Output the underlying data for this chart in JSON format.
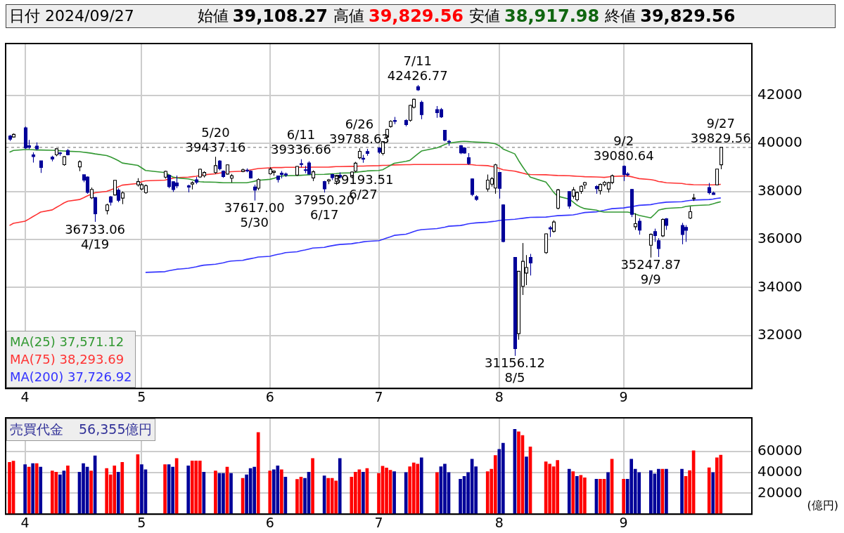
{
  "chart_data": [
    {
      "type": "candlestick",
      "annotations": [
        "日付 2024/09/27",
        "始値",
        "39,108.27",
        "高値",
        "39,829.56",
        "安値",
        "38,917.98",
        "終値",
        "39,829.56",
        {
          "text": "7/11",
          "x": "2024-07-11",
          "y": 42426.77
        },
        {
          "text": "42426.77",
          "x": "2024-07-11",
          "y": 42426.77
        },
        {
          "text": "5/20",
          "x": "2024-05-20",
          "y": 39437.16
        },
        {
          "text": "39437.16",
          "x": "2024-05-20",
          "y": 39437.16
        },
        {
          "text": "6/11",
          "x": "2024-06-11",
          "y": 39336.66
        },
        {
          "text": "39336.66",
          "x": "2024-06-11",
          "y": 39336.66
        },
        {
          "text": "6/26",
          "x": "2024-06-26",
          "y": 39788.63
        },
        {
          "text": "39788.63",
          "x": "2024-06-26",
          "y": 39788.63
        },
        {
          "text": "39193.51",
          "x": "2024-06-27",
          "y": 39193.51
        },
        {
          "text": "6/27",
          "x": "2024-06-27",
          "y": 39193.51
        },
        {
          "text": "36733.06",
          "x": "2024-04-19",
          "y": 36733.06
        },
        {
          "text": "4/19",
          "x": "2024-04-19",
          "y": 36733.06
        },
        {
          "text": "37617.00",
          "x": "2024-05-30",
          "y": 37617
        },
        {
          "text": "5/30",
          "x": "2024-05-30",
          "y": 37617
        },
        {
          "text": "37950.20",
          "x": "2024-06-17",
          "y": 37950.2
        },
        {
          "text": "6/17",
          "x": "2024-06-17",
          "y": 37950.2
        },
        {
          "text": "31156.12",
          "x": "2024-08-05",
          "y": 31156.12
        },
        {
          "text": "8/5",
          "x": "2024-08-05",
          "y": 31156.12
        },
        {
          "text": "9/2",
          "x": "2024-09-02",
          "y": 39080.64
        },
        {
          "text": "39080.64",
          "x": "2024-09-02",
          "y": 39080.64
        },
        {
          "text": "35247.87",
          "x": "2024-09-09",
          "y": 35247.87
        },
        {
          "text": "9/9",
          "x": "2024-09-09",
          "y": 35247.87
        },
        {
          "text": "9/27",
          "x": "2024-09-27",
          "y": 39829.56
        },
        {
          "text": "39829.56",
          "x": "2024-09-27",
          "y": 39829.56
        }
      ],
      "x": [
        "2024-03-28",
        "2024-03-29",
        "2024-04-01",
        "2024-04-02",
        "2024-04-03",
        "2024-04-04",
        "2024-04-05",
        "2024-04-08",
        "2024-04-09",
        "2024-04-10",
        "2024-04-11",
        "2024-04-12",
        "2024-04-15",
        "2024-04-16",
        "2024-04-17",
        "2024-04-18",
        "2024-04-19",
        "2024-04-22",
        "2024-04-23",
        "2024-04-24",
        "2024-04-25",
        "2024-04-26",
        "2024-04-30",
        "2024-05-01",
        "2024-05-02",
        "2024-05-07",
        "2024-05-08",
        "2024-05-09",
        "2024-05-10",
        "2024-05-13",
        "2024-05-14",
        "2024-05-15",
        "2024-05-16",
        "2024-05-17",
        "2024-05-20",
        "2024-05-21",
        "2024-05-22",
        "2024-05-23",
        "2024-05-24",
        "2024-05-27",
        "2024-05-28",
        "2024-05-29",
        "2024-05-30",
        "2024-05-31",
        "2024-06-03",
        "2024-06-04",
        "2024-06-05",
        "2024-06-06",
        "2024-06-07",
        "2024-06-10",
        "2024-06-11",
        "2024-06-12",
        "2024-06-13",
        "2024-06-14",
        "2024-06-17",
        "2024-06-18",
        "2024-06-19",
        "2024-06-20",
        "2024-06-21",
        "2024-06-24",
        "2024-06-25",
        "2024-06-26",
        "2024-06-27",
        "2024-06-28",
        "2024-07-01",
        "2024-07-02",
        "2024-07-03",
        "2024-07-04",
        "2024-07-05",
        "2024-07-08",
        "2024-07-09",
        "2024-07-10",
        "2024-07-11",
        "2024-07-12",
        "2024-07-16",
        "2024-07-17",
        "2024-07-18",
        "2024-07-19",
        "2024-07-22",
        "2024-07-23",
        "2024-07-24",
        "2024-07-25",
        "2024-07-26",
        "2024-07-29",
        "2024-07-30",
        "2024-07-31",
        "2024-08-01",
        "2024-08-02",
        "2024-08-05",
        "2024-08-06",
        "2024-08-07",
        "2024-08-08",
        "2024-08-09",
        "2024-08-13",
        "2024-08-14",
        "2024-08-15",
        "2024-08-16",
        "2024-08-19",
        "2024-08-20",
        "2024-08-21",
        "2024-08-22",
        "2024-08-23",
        "2024-08-26",
        "2024-08-27",
        "2024-08-28",
        "2024-08-29",
        "2024-08-30",
        "2024-09-02",
        "2024-09-03",
        "2024-09-04",
        "2024-09-05",
        "2024-09-06",
        "2024-09-09",
        "2024-09-10",
        "2024-09-11",
        "2024-09-12",
        "2024-09-13",
        "2024-09-17",
        "2024-09-18",
        "2024-09-19",
        "2024-09-20",
        "2024-09-24",
        "2024-09-25",
        "2024-09-26",
        "2024-09-27"
      ],
      "xlim": [
        "2024-03-27",
        "2024-10-05"
      ],
      "xticks": [
        {
          "value": "2024-04-01",
          "label": "4"
        },
        {
          "value": "2024-05-01",
          "label": "5"
        },
        {
          "value": "2024-06-03",
          "label": "6"
        },
        {
          "value": "2024-07-01",
          "label": "7"
        },
        {
          "value": "2024-08-01",
          "label": "8"
        },
        {
          "value": "2024-09-02",
          "label": "9"
        }
      ],
      "ohlc": [
        [
          40300,
          40350,
          40100,
          40168
        ],
        [
          40260,
          40410,
          40240,
          40369
        ],
        [
          40646,
          40697,
          39768,
          39803
        ],
        [
          39900,
          40140,
          39760,
          39838
        ],
        [
          39520,
          39620,
          39200,
          39451
        ],
        [
          39880,
          40040,
          39720,
          39773
        ],
        [
          39270,
          39270,
          38770,
          38992
        ],
        [
          39420,
          39480,
          39250,
          39347
        ],
        [
          39520,
          39780,
          39460,
          39773
        ],
        [
          39600,
          39640,
          39480,
          39581
        ],
        [
          39110,
          39460,
          39070,
          39442
        ],
        [
          39700,
          39760,
          39500,
          39523
        ],
        [
          39020,
          39290,
          38840,
          39232
        ],
        [
          38690,
          38690,
          38380,
          38471
        ],
        [
          38600,
          38620,
          37900,
          37961
        ],
        [
          37730,
          38160,
          37680,
          38079
        ],
        [
          37740,
          37760,
          36733.06,
          37068
        ],
        [
          37200,
          37490,
          37040,
          37438
        ],
        [
          37770,
          37810,
          37410,
          37552
        ],
        [
          37850,
          38460,
          37830,
          38460
        ],
        [
          38050,
          38130,
          37550,
          37628
        ],
        [
          37720,
          38000,
          37470,
          37934
        ],
        [
          38270,
          38550,
          38200,
          38405
        ],
        [
          38100,
          38350,
          38050,
          38274
        ],
        [
          37950,
          38290,
          37900,
          38236
        ],
        [
          38590,
          38860,
          38530,
          38835
        ],
        [
          38670,
          38700,
          38130,
          38202
        ],
        [
          38400,
          38420,
          37980,
          38074
        ],
        [
          38350,
          38660,
          38130,
          38229
        ],
        [
          38230,
          38280,
          37960,
          38179
        ],
        [
          38300,
          38420,
          38080,
          38356
        ],
        [
          38480,
          38600,
          38300,
          38385
        ],
        [
          38600,
          38950,
          38560,
          38920
        ],
        [
          38650,
          38830,
          38580,
          38787
        ],
        [
          38780,
          39437.16,
          38730,
          39069
        ],
        [
          39260,
          39300,
          38880,
          38947
        ],
        [
          38840,
          38870,
          38560,
          38617
        ],
        [
          38720,
          39120,
          38700,
          39103
        ],
        [
          38550,
          38720,
          38370,
          38646
        ],
        [
          38830,
          38950,
          38800,
          38900
        ],
        [
          38880,
          38960,
          38800,
          38855
        ],
        [
          38840,
          38880,
          38530,
          38557
        ],
        [
          38180,
          38280,
          37617,
          38054
        ],
        [
          38130,
          38540,
          38050,
          38488
        ],
        [
          38730,
          39000,
          38700,
          38923
        ],
        [
          38790,
          38880,
          38650,
          38837
        ],
        [
          38640,
          38650,
          38370,
          38490
        ],
        [
          38760,
          38850,
          38540,
          38703
        ],
        [
          38720,
          38780,
          38600,
          38683
        ],
        [
          38680,
          39050,
          38640,
          39038
        ],
        [
          39150,
          39336.66,
          39000,
          39134
        ],
        [
          38900,
          39060,
          38760,
          38876
        ],
        [
          39180,
          39260,
          38700,
          38720
        ],
        [
          38560,
          38880,
          38430,
          38814
        ],
        [
          38410,
          38440,
          37950.2,
          38102
        ],
        [
          38430,
          38520,
          38300,
          38482
        ],
        [
          38700,
          38730,
          38470,
          38570
        ],
        [
          38420,
          38640,
          38270,
          38633
        ],
        [
          38670,
          38790,
          38530,
          38596
        ],
        [
          38600,
          38840,
          38540,
          38804
        ],
        [
          38840,
          39230,
          38800,
          39173
        ],
        [
          39400,
          39788.63,
          39340,
          39667
        ],
        [
          39380,
          39520,
          39193.51,
          39341
        ],
        [
          39660,
          39770,
          39480,
          39583
        ],
        [
          39800,
          39830,
          39560,
          39631
        ],
        [
          39580,
          40080,
          39500,
          40074
        ],
        [
          40260,
          40600,
          40200,
          40580
        ],
        [
          40700,
          40960,
          40650,
          40913
        ],
        [
          40950,
          41100,
          40800,
          40912
        ],
        [
          40950,
          41000,
          40700,
          40780
        ],
        [
          40960,
          41600,
          40900,
          41580
        ],
        [
          41500,
          41860,
          41450,
          41832
        ],
        [
          42350,
          42426.77,
          42180,
          42224
        ],
        [
          41700,
          41780,
          41000,
          41191
        ],
        [
          41400,
          41550,
          41060,
          41275
        ],
        [
          41400,
          41470,
          41050,
          41098
        ],
        [
          40540,
          40560,
          40080,
          40126
        ],
        [
          40080,
          40140,
          39900,
          40064
        ],
        [
          39900,
          39930,
          39550,
          39599
        ],
        [
          39800,
          39830,
          39570,
          39594
        ],
        [
          39400,
          39590,
          39100,
          39155
        ],
        [
          38520,
          38540,
          37800,
          37870
        ],
        [
          37780,
          37840,
          37610,
          37667
        ],
        [
          38100,
          38700,
          37990,
          38468
        ],
        [
          38300,
          38600,
          38200,
          38526
        ],
        [
          38140,
          39150,
          37900,
          39102
        ],
        [
          38790,
          38800,
          37700,
          38126
        ],
        [
          37440,
          37460,
          35880,
          35910
        ],
        [
          35250,
          35250,
          31156.12,
          31458
        ],
        [
          32080,
          34680,
          31830,
          34675
        ],
        [
          34050,
          35850,
          33690,
          35090
        ],
        [
          34600,
          35350,
          34100,
          34831
        ],
        [
          35250,
          35400,
          34500,
          35025
        ],
        [
          35450,
          36250,
          35400,
          36232
        ],
        [
          36490,
          36560,
          36100,
          36442
        ],
        [
          36340,
          36800,
          36280,
          36727
        ],
        [
          37300,
          38100,
          37250,
          38063
        ],
        [
          37990,
          38000,
          37280,
          37389
        ],
        [
          37800,
          38180,
          37700,
          38063
        ],
        [
          37650,
          38000,
          37580,
          37952
        ],
        [
          38000,
          38250,
          37900,
          38211
        ],
        [
          38270,
          38400,
          38100,
          38364
        ],
        [
          38200,
          38260,
          37900,
          38110
        ],
        [
          38030,
          38330,
          37870,
          38289
        ],
        [
          38280,
          38430,
          38200,
          38372
        ],
        [
          38100,
          38400,
          37950,
          38363
        ],
        [
          38370,
          38700,
          38300,
          38648
        ],
        [
          39040,
          39080.64,
          38430,
          38701
        ],
        [
          38720,
          38800,
          38620,
          38686
        ],
        [
          38080,
          38100,
          36930,
          37048
        ],
        [
          36530,
          37090,
          36400,
          36657
        ],
        [
          36760,
          36880,
          36200,
          36391
        ],
        [
          35760,
          36250,
          35247.87,
          36216
        ],
        [
          36330,
          36450,
          35900,
          36159
        ],
        [
          35950,
          36050,
          35270,
          35620
        ],
        [
          36150,
          36880,
          36100,
          36833
        ],
        [
          36860,
          36890,
          36400,
          36582
        ],
        [
          36580,
          36690,
          35800,
          36203
        ],
        [
          36500,
          36600,
          35900,
          36380
        ],
        [
          36890,
          37370,
          36850,
          37155
        ],
        [
          37700,
          37900,
          37600,
          37724
        ],
        [
          38160,
          38350,
          37870,
          37941
        ],
        [
          37930,
          37990,
          37860,
          37870
        ],
        [
          38270,
          38930,
          38250,
          38926
        ],
        [
          39108.27,
          39829.56,
          38917.98,
          39829.56
        ]
      ],
      "series": [
        {
          "name": "MA(25) 37,571.12",
          "type": "line",
          "color": "#339933",
          "values": [
            39630,
            39700,
            39740,
            39740,
            39730,
            39720,
            39720,
            39710,
            39700,
            39690,
            39680,
            39670,
            39650,
            39630,
            39610,
            39590,
            39560,
            39490,
            39430,
            39360,
            39280,
            39180,
            39080,
            38980,
            38870,
            38780,
            38690,
            38600,
            38560,
            38520,
            38480,
            38430,
            38400,
            38390,
            38380,
            38370,
            38360,
            38360,
            38360,
            38360,
            38360,
            38390,
            38420,
            38460,
            38500,
            38540,
            38590,
            38640,
            38650,
            38660,
            38670,
            38680,
            38690,
            38700,
            38710,
            38720,
            38730,
            38740,
            38760,
            38770,
            38790,
            38810,
            38830,
            38850,
            38870,
            38900,
            38990,
            39080,
            39170,
            39250,
            39290,
            39420,
            39550,
            39680,
            39810,
            39880,
            39950,
            40010,
            40070,
            40080,
            40070,
            40060,
            40050,
            40030,
            40010,
            39980,
            39900,
            39760,
            39560,
            39280,
            39030,
            38800,
            38590,
            38390,
            38180,
            37960,
            37800,
            37680,
            37560,
            37430,
            37340,
            37280,
            37220,
            37170,
            37140,
            37140,
            37140,
            37140,
            37140,
            37110,
            37060,
            37000,
            36900,
            37050,
            37220,
            37260,
            37290,
            37330,
            37370,
            37390,
            37410,
            37440,
            37480,
            37530,
            37571
          ]
        },
        {
          "name": "MA(75) 38,293.69",
          "type": "line",
          "color": "#ff3333",
          "values": [
            36580,
            36670,
            36760,
            36850,
            36950,
            37040,
            37140,
            37230,
            37330,
            37420,
            37520,
            37590,
            37660,
            37730,
            37810,
            37880,
            37940,
            38000,
            38060,
            38120,
            38190,
            38260,
            38330,
            38400,
            38440,
            38470,
            38510,
            38550,
            38570,
            38590,
            38610,
            38630,
            38660,
            38690,
            38730,
            38760,
            38780,
            38800,
            38820,
            38840,
            38860,
            38890,
            38920,
            38950,
            38980,
            38990,
            38990,
            38990,
            39000,
            39000,
            39000,
            39000,
            39000,
            39010,
            39010,
            39010,
            39020,
            39030,
            39030,
            39040,
            39040,
            39050,
            39050,
            39060,
            39070,
            39080,
            39080,
            39090,
            39100,
            39110,
            39110,
            39120,
            39120,
            39120,
            39120,
            39120,
            39120,
            39120,
            39120,
            39120,
            39120,
            39110,
            39090,
            39070,
            39040,
            39010,
            38960,
            38900,
            38840,
            38800,
            38760,
            38720,
            38700,
            38690,
            38680,
            38670,
            38660,
            38650,
            38640,
            38630,
            38620,
            38610,
            38600,
            38590,
            38580,
            38600,
            38620,
            38640,
            38640,
            38610,
            38570,
            38530,
            38490,
            38460,
            38410,
            38390,
            38360,
            38330,
            38300,
            38290,
            38280,
            38270,
            38270,
            38280,
            38294
          ]
        },
        {
          "name": "MA(200) 37,726.92",
          "type": "line",
          "color": "#3333ff",
          "values": [
            null,
            null,
            null,
            null,
            null,
            null,
            null,
            null,
            null,
            null,
            null,
            null,
            null,
            null,
            null,
            null,
            null,
            null,
            null,
            null,
            null,
            null,
            null,
            null,
            34630,
            34660,
            34700,
            34730,
            34760,
            34800,
            34830,
            34860,
            34900,
            34930,
            34970,
            35000,
            35030,
            35070,
            35100,
            35130,
            35170,
            35200,
            35230,
            35270,
            35300,
            35340,
            35380,
            35410,
            35450,
            35490,
            35530,
            35560,
            35600,
            35640,
            35670,
            35710,
            35740,
            35770,
            35790,
            35820,
            35850,
            35870,
            35900,
            35920,
            35950,
            36000,
            36060,
            36110,
            36170,
            36220,
            36270,
            36330,
            36380,
            36410,
            36450,
            36480,
            36510,
            36550,
            36580,
            36610,
            36650,
            36670,
            36690,
            36720,
            36740,
            36760,
            36790,
            36810,
            36840,
            36860,
            36880,
            36900,
            36920,
            36930,
            36950,
            36970,
            36990,
            37010,
            37020,
            37050,
            37090,
            37120,
            37150,
            37180,
            37210,
            37250,
            37280,
            37310,
            37340,
            37360,
            37390,
            37420,
            37450,
            37480,
            37510,
            37530,
            37550,
            37570,
            37600,
            37620,
            37640,
            37660,
            37680,
            37710,
            37727
          ]
        }
      ],
      "ylim": [
        29800,
        44150
      ],
      "yticks": [
        32000,
        34000,
        36000,
        38000,
        40000,
        42000
      ],
      "ref_lines": [
        {
          "axis": "y",
          "value": 39829.56,
          "color": "#888888",
          "line_style": "dashed"
        }
      ],
      "grid": true,
      "legend": "bottom left"
    },
    {
      "type": "bar",
      "title": "売買代金",
      "annotations": [
        "56,355億円"
      ],
      "ylabel": "(億円)",
      "x": [
        "2024-03-28",
        "2024-03-29",
        "2024-04-01",
        "2024-04-02",
        "2024-04-03",
        "2024-04-04",
        "2024-04-05",
        "2024-04-08",
        "2024-04-09",
        "2024-04-10",
        "2024-04-11",
        "2024-04-12",
        "2024-04-15",
        "2024-04-16",
        "2024-04-17",
        "2024-04-18",
        "2024-04-19",
        "2024-04-22",
        "2024-04-23",
        "2024-04-24",
        "2024-04-25",
        "2024-04-26",
        "2024-04-30",
        "2024-05-01",
        "2024-05-02",
        "2024-05-07",
        "2024-05-08",
        "2024-05-09",
        "2024-05-10",
        "2024-05-13",
        "2024-05-14",
        "2024-05-15",
        "2024-05-16",
        "2024-05-17",
        "2024-05-20",
        "2024-05-21",
        "2024-05-22",
        "2024-05-23",
        "2024-05-24",
        "2024-05-27",
        "2024-05-28",
        "2024-05-29",
        "2024-05-30",
        "2024-05-31",
        "2024-06-03",
        "2024-06-04",
        "2024-06-05",
        "2024-06-06",
        "2024-06-07",
        "2024-06-10",
        "2024-06-11",
        "2024-06-12",
        "2024-06-13",
        "2024-06-14",
        "2024-06-17",
        "2024-06-18",
        "2024-06-19",
        "2024-06-20",
        "2024-06-21",
        "2024-06-24",
        "2024-06-25",
        "2024-06-26",
        "2024-06-27",
        "2024-06-28",
        "2024-07-01",
        "2024-07-02",
        "2024-07-03",
        "2024-07-04",
        "2024-07-05",
        "2024-07-08",
        "2024-07-09",
        "2024-07-10",
        "2024-07-11",
        "2024-07-12",
        "2024-07-16",
        "2024-07-17",
        "2024-07-18",
        "2024-07-19",
        "2024-07-22",
        "2024-07-23",
        "2024-07-24",
        "2024-07-25",
        "2024-07-26",
        "2024-07-29",
        "2024-07-30",
        "2024-07-31",
        "2024-08-01",
        "2024-08-02",
        "2024-08-05",
        "2024-08-06",
        "2024-08-07",
        "2024-08-08",
        "2024-08-09",
        "2024-08-13",
        "2024-08-14",
        "2024-08-15",
        "2024-08-16",
        "2024-08-19",
        "2024-08-20",
        "2024-08-21",
        "2024-08-22",
        "2024-08-23",
        "2024-08-26",
        "2024-08-27",
        "2024-08-28",
        "2024-08-29",
        "2024-08-30",
        "2024-09-02",
        "2024-09-03",
        "2024-09-04",
        "2024-09-05",
        "2024-09-06",
        "2024-09-09",
        "2024-09-10",
        "2024-09-11",
        "2024-09-12",
        "2024-09-13",
        "2024-09-17",
        "2024-09-18",
        "2024-09-19",
        "2024-09-20",
        "2024-09-24",
        "2024-09-25",
        "2024-09-26",
        "2024-09-27"
      ],
      "xlim": [
        "2024-03-27",
        "2024-10-05"
      ],
      "xticks": [
        {
          "value": "2024-04-01",
          "label": "4"
        },
        {
          "value": "2024-05-01",
          "label": "5"
        },
        {
          "value": "2024-06-03",
          "label": "6"
        },
        {
          "value": "2024-07-01",
          "label": "7"
        },
        {
          "value": "2024-08-01",
          "label": "8"
        },
        {
          "value": "2024-09-02",
          "label": "9"
        }
      ],
      "values": [
        49600,
        50700,
        47300,
        45000,
        48400,
        48400,
        45000,
        41300,
        40200,
        37700,
        41300,
        46100,
        40200,
        48400,
        45000,
        41300,
        55700,
        43600,
        37700,
        46100,
        40200,
        49600,
        56900,
        47300,
        42500,
        47300,
        47300,
        45000,
        53200,
        46100,
        50900,
        50900,
        50900,
        40200,
        41300,
        39000,
        39000,
        45000,
        39000,
        34300,
        37700,
        43600,
        45000,
        78100,
        41300,
        42500,
        46100,
        42500,
        35400,
        33200,
        35400,
        34300,
        40200,
        53200,
        36600,
        34300,
        34300,
        31800,
        53200,
        35400,
        40200,
        42500,
        40200,
        43600,
        39000,
        45900,
        44100,
        42000,
        40600,
        39800,
        45400,
        49100,
        47800,
        53900,
        39800,
        45400,
        47800,
        39800,
        33400,
        36100,
        39800,
        52600,
        45400,
        40600,
        43000,
        56100,
        61900,
        67800,
        81100,
        78700,
        75200,
        54700,
        64300,
        50000,
        47800,
        45400,
        51300,
        43000,
        40600,
        36100,
        37200,
        34800,
        33400,
        33400,
        33400,
        39800,
        52600,
        33400,
        33400,
        52600,
        43000,
        39800,
        41700,
        38500,
        43000,
        43000,
        43000,
        43000,
        36100,
        41700,
        60600,
        44300,
        39800,
        53900,
        56355
      ],
      "colors": [
        "#ff0000",
        "#ff0000",
        "#000099",
        "#ff0000",
        "#000099",
        "#ff0000",
        "#000099",
        "#ff0000",
        "#ff0000",
        "#000099",
        "#000099",
        "#ff0000",
        "#000099",
        "#000099",
        "#000099",
        "#ff0000",
        "#000099",
        "#ff0000",
        "#ff0000",
        "#ff0000",
        "#000099",
        "#ff0000",
        "#ff0000",
        "#000099",
        "#000099",
        "#ff0000",
        "#000099",
        "#000099",
        "#ff0000",
        "#000099",
        "#ff0000",
        "#ff0000",
        "#ff0000",
        "#000099",
        "#ff0000",
        "#000099",
        "#000099",
        "#ff0000",
        "#000099",
        "#ff0000",
        "#000099",
        "#000099",
        "#000099",
        "#ff0000",
        "#ff0000",
        "#000099",
        "#000099",
        "#ff0000",
        "#000099",
        "#ff0000",
        "#ff0000",
        "#000099",
        "#000099",
        "#ff0000",
        "#000099",
        "#ff0000",
        "#ff0000",
        "#ff0000",
        "#000099",
        "#ff0000",
        "#ff0000",
        "#ff0000",
        "#000099",
        "#ff0000",
        "#ff0000",
        "#ff0000",
        "#ff0000",
        "#ff0000",
        "#000099",
        "#000099",
        "#ff0000",
        "#ff0000",
        "#ff0000",
        "#000099",
        "#ff0000",
        "#000099",
        "#000099",
        "#000099",
        "#000099",
        "#000099",
        "#000099",
        "#000099",
        "#000099",
        "#ff0000",
        "#ff0000",
        "#ff0000",
        "#000099",
        "#000099",
        "#000099",
        "#ff0000",
        "#ff0000",
        "#000099",
        "#ff0000",
        "#ff0000",
        "#ff0000",
        "#ff0000",
        "#ff0000",
        "#000099",
        "#ff0000",
        "#000099",
        "#ff0000",
        "#ff0000",
        "#000099",
        "#ff0000",
        "#ff0000",
        "#000099",
        "#ff0000",
        "#ff0000",
        "#000099",
        "#000099",
        "#000099",
        "#000099",
        "#000099",
        "#000099",
        "#000099",
        "#ff0000",
        "#000099",
        "#000099",
        "#ff0000",
        "#ff0000",
        "#ff0000",
        "#ff0000",
        "#000099",
        "#ff0000",
        "#ff0000"
      ],
      "ylim": [
        0,
        92000
      ],
      "yticks": [
        20000,
        40000,
        60000
      ],
      "grid": true
    }
  ]
}
